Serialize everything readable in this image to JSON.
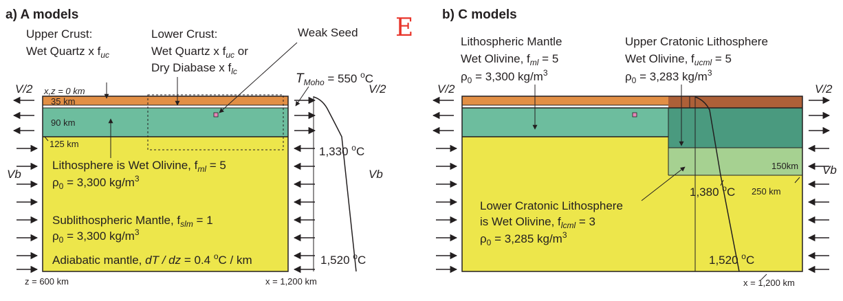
{
  "colors": {
    "upper_crust": "#e28f45",
    "cratonic_crust": "#ad6038",
    "lithosphere": "#6dbd9e",
    "upper_cratonic_lithosphere": "#4a9a7f",
    "lower_cratonic_lithosphere": "#a6d191",
    "sublithospheric_mantle": "#ede64b",
    "weak_seed": "#e387b8",
    "annotation": "#e8342a"
  },
  "annotation_mark": "E",
  "panel_a": {
    "title": "a) A models",
    "upper_crust_line1": "Upper Crust:",
    "upper_crust_line2": "Wet Quartz x f",
    "upper_crust_sub": "uc",
    "lower_crust_line1": "Lower Crust:",
    "lower_crust_line2": "Wet Quartz x f",
    "lower_crust_sub2": "uc",
    "lower_crust_or": " or",
    "lower_crust_line3": "Dry Diabase x f",
    "lower_crust_sub3": "lc",
    "weak_seed": "Weak Seed",
    "tmoho_T": "T",
    "tmoho_sub": "Moho",
    "tmoho_value": " = 550 ",
    "deg_sup": "o",
    "deg_C": "C",
    "v2_left": "V/2",
    "v2_right": "V/2",
    "vb_left": "Vb",
    "vb_right": "Vb",
    "origin_label": "x,z = 0 km",
    "depth_35": "35 km",
    "depth_90": "90 km",
    "depth_125": "125 km",
    "temp_1330": "1,330 ",
    "litho_line1_a": "Lithosphere is Wet Olivine, f",
    "litho_line1_sub": "ml",
    "litho_line1_b": " = 5",
    "rho": "ρ",
    "rho_sub": "0",
    "rho_value_1": "  = 3,300 kg/m",
    "sup3": "3",
    "sublitho_a": "Sublithospheric Mantle, f",
    "sublitho_sub": "slm",
    "sublitho_b": " = 1",
    "rho_value_2": "  = 3,300 kg/m",
    "adiabatic_a": "Adiabatic mantle, ",
    "adiabatic_i": "dT / dz",
    "adiabatic_b": " = 0.4 ",
    "adiabatic_c": "C / km",
    "temp_1520": "1,520 ",
    "z_label": "z = 600 km",
    "x_label": "x = 1,200 km"
  },
  "panel_b": {
    "title": "b) C models",
    "lm_line1": "Lithospheric Mantle",
    "lm_line2_a": "Wet Olivine, f",
    "lm_line2_sub": "ml",
    "lm_line2_b": " = 5",
    "lm_rho_value": "  = 3,300 kg/m",
    "ucl_line1": "Upper Cratonic Lithosphere",
    "ucl_line2_a": "Wet Olivine, f",
    "ucl_line2_sub": "ucml",
    "ucl_line2_b": " = 5",
    "ucl_rho_value": "  = 3,283 kg/m",
    "v2_left": "V/2",
    "v2_right": "V/2",
    "vb_right": "Vb",
    "depth_150": "150km",
    "depth_250": "250 km",
    "temp_1380": "1,380 ",
    "lcl_line1": "Lower Cratonic Lithosphere",
    "lcl_line2_a": "is Wet Olivine, f",
    "lcl_line2_sub": "lcml",
    "lcl_line2_b": " = 3",
    "lcl_rho_value": "  = 3,285 kg/m",
    "temp_1520": "1,520 ",
    "x_label": "x = 1,200 km"
  }
}
